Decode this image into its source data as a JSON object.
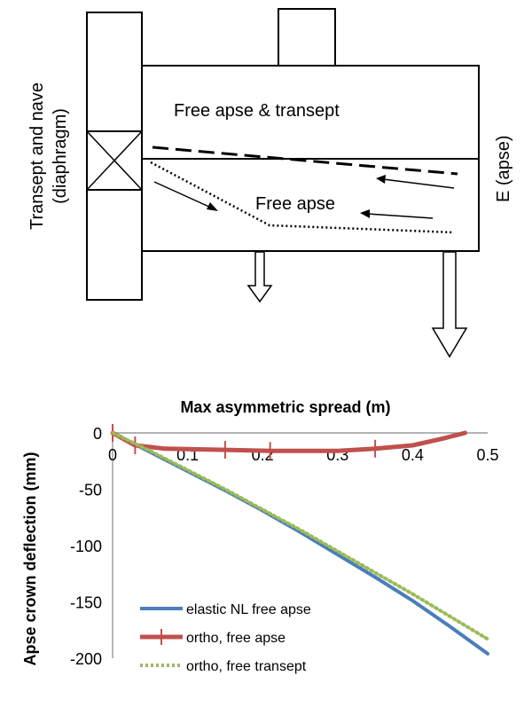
{
  "diagram": {
    "labels": {
      "transept_nave": [
        "Transept and nave",
        "(diaphragm)"
      ],
      "free_apse_transept": "Free apse & transept",
      "free_apse": "Free apse",
      "east": "E (apse)"
    }
  },
  "chart_data": {
    "type": "line",
    "title": "Max asymmetric spread (m)",
    "xlabel": "Max asymmetric spread (m)",
    "ylabel": "Apse crown deflection (mm)",
    "xlim": [
      0,
      0.5
    ],
    "ylim": [
      -200,
      0
    ],
    "x_ticks": [
      "0",
      "0.1",
      "0.2",
      "0.3",
      "0.4",
      "0.5"
    ],
    "y_ticks": [
      "0",
      "-50",
      "-100",
      "-150",
      "-200"
    ],
    "x_axis_position": "top",
    "legend_position": "bottom-left",
    "series": [
      {
        "name": "elastic NL free apse",
        "color": "#4a7ebb",
        "style": "solid",
        "x": [
          0,
          0.05,
          0.1,
          0.15,
          0.2,
          0.25,
          0.3,
          0.35,
          0.4,
          0.45,
          0.5
        ],
        "y": [
          0,
          -17,
          -34,
          -51,
          -69,
          -88,
          -108,
          -128,
          -149,
          -172,
          -196
        ]
      },
      {
        "name": "ortho, free apse",
        "color": "#c0504d",
        "style": "solid-with-ticks",
        "x": [
          0,
          0.03,
          0.07,
          0.15,
          0.21,
          0.3,
          0.35,
          0.4,
          0.44,
          0.47
        ],
        "y": [
          0,
          -11,
          -14,
          -15,
          -16,
          -16,
          -14,
          -11,
          -5,
          0
        ],
        "markers_x": [
          0,
          0.03,
          0.15,
          0.21,
          0.35
        ]
      },
      {
        "name": "ortho, free transept",
        "color": "#9bbb59",
        "style": "dotted",
        "x": [
          0,
          0.05,
          0.1,
          0.15,
          0.2,
          0.25,
          0.3,
          0.35,
          0.4,
          0.45,
          0.5
        ],
        "y": [
          0,
          -16,
          -33,
          -50,
          -68,
          -86,
          -105,
          -124,
          -143,
          -163,
          -183
        ]
      }
    ]
  }
}
